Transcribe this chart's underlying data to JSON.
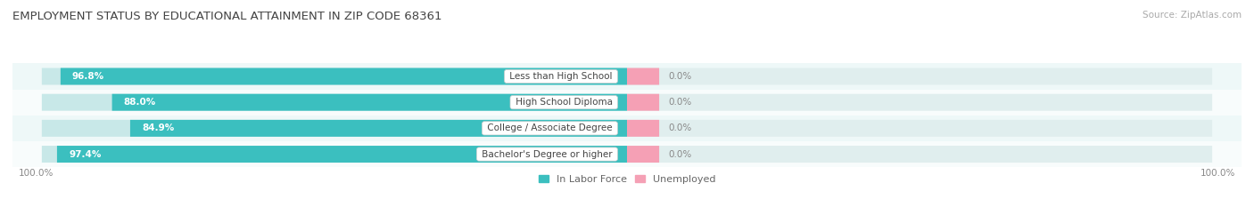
{
  "title": "EMPLOYMENT STATUS BY EDUCATIONAL ATTAINMENT IN ZIP CODE 68361",
  "source": "Source: ZipAtlas.com",
  "categories": [
    "Less than High School",
    "High School Diploma",
    "College / Associate Degree",
    "Bachelor's Degree or higher"
  ],
  "in_labor_force": [
    96.8,
    88.0,
    84.9,
    97.4
  ],
  "unemployed": [
    0.0,
    0.0,
    0.0,
    0.0
  ],
  "labor_color": "#3BBFBF",
  "unemployed_color": "#F5A0B5",
  "bar_bg_left_color": "#C8E8E8",
  "bar_bg_right_color": "#E0EEEE",
  "row_bg_even": "#EEF8F8",
  "row_bg_odd": "#F8FCFC",
  "label_color_labor": "#FFFFFF",
  "label_color_unemployed": "#999999",
  "legend_labor": "In Labor Force",
  "legend_unemployed": "Unemployed",
  "x_left_label": "100.0%",
  "x_right_label": "100.0%",
  "title_fontsize": 9.5,
  "bar_label_fontsize": 7.5,
  "category_fontsize": 7.5,
  "legend_fontsize": 8,
  "axis_label_fontsize": 7.5,
  "source_fontsize": 7.5
}
